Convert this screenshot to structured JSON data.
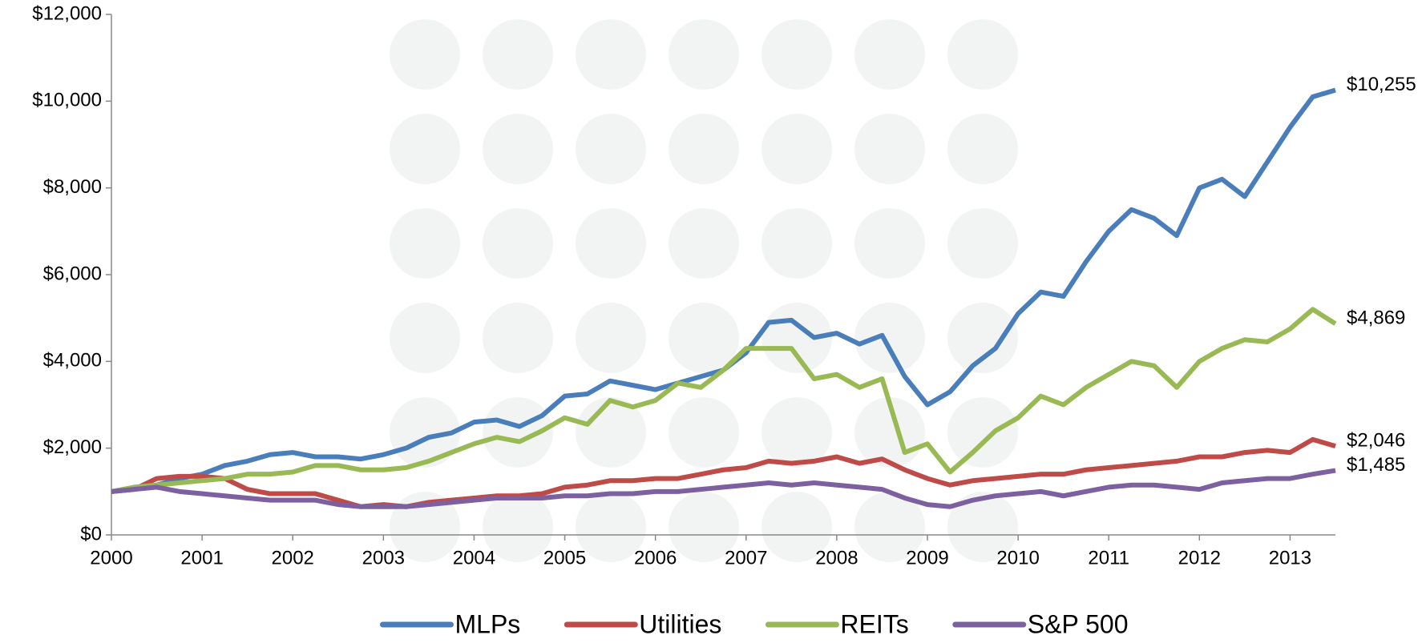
{
  "chart_data": {
    "type": "line",
    "x": [
      2000,
      2000.25,
      2000.5,
      2000.75,
      2001,
      2001.25,
      2001.5,
      2001.75,
      2002,
      2002.25,
      2002.5,
      2002.75,
      2003,
      2003.25,
      2003.5,
      2003.75,
      2004,
      2004.25,
      2004.5,
      2004.75,
      2005,
      2005.25,
      2005.5,
      2005.75,
      2006,
      2006.25,
      2006.5,
      2006.75,
      2007,
      2007.25,
      2007.5,
      2007.75,
      2008,
      2008.25,
      2008.5,
      2008.75,
      2009,
      2009.25,
      2009.5,
      2009.75,
      2010,
      2010.25,
      2010.5,
      2010.75,
      2011,
      2011.25,
      2011.5,
      2011.75,
      2012,
      2012.25,
      2012.5,
      2012.75,
      2013,
      2013.25,
      2013.5
    ],
    "series": [
      {
        "name": "MLPs",
        "color": "#4a7ebb",
        "end_label": "$10,255",
        "values": [
          1000,
          1050,
          1150,
          1300,
          1400,
          1600,
          1700,
          1850,
          1900,
          1800,
          1800,
          1750,
          1850,
          2000,
          2250,
          2350,
          2600,
          2650,
          2500,
          2750,
          3200,
          3250,
          3550,
          3450,
          3350,
          3500,
          3650,
          3800,
          4200,
          4900,
          4950,
          4550,
          4650,
          4400,
          4600,
          3650,
          3000,
          3300,
          3900,
          4300,
          5100,
          5600,
          5500,
          6300,
          7000,
          7500,
          7300,
          6900,
          8000,
          8200,
          7800,
          8600,
          9400,
          10100,
          10255
        ]
      },
      {
        "name": "Utilities",
        "color": "#be4b48",
        "end_label": "$2,046",
        "values": [
          1000,
          1050,
          1300,
          1350,
          1350,
          1300,
          1050,
          950,
          950,
          950,
          800,
          650,
          700,
          650,
          750,
          800,
          850,
          900,
          900,
          950,
          1100,
          1150,
          1250,
          1250,
          1300,
          1300,
          1400,
          1500,
          1550,
          1700,
          1650,
          1700,
          1800,
          1650,
          1750,
          1500,
          1300,
          1150,
          1250,
          1300,
          1350,
          1400,
          1400,
          1500,
          1550,
          1600,
          1650,
          1700,
          1800,
          1800,
          1900,
          1950,
          1900,
          2200,
          2046
        ]
      },
      {
        "name": "REITs",
        "color": "#98b954",
        "end_label": "$4,869",
        "values": [
          1000,
          1100,
          1150,
          1200,
          1250,
          1300,
          1400,
          1400,
          1450,
          1600,
          1600,
          1500,
          1500,
          1550,
          1700,
          1900,
          2100,
          2250,
          2150,
          2400,
          2700,
          2550,
          3100,
          2950,
          3100,
          3500,
          3400,
          3800,
          4300,
          4300,
          4300,
          3600,
          3700,
          3400,
          3600,
          1900,
          2100,
          1450,
          1900,
          2400,
          2700,
          3200,
          3000,
          3400,
          3700,
          4000,
          3900,
          3400,
          4000,
          4300,
          4500,
          4450,
          4750,
          5200,
          4869
        ]
      },
      {
        "name": "S&P 500",
        "color": "#7d60a0",
        "end_label": "$1,485",
        "values": [
          1000,
          1050,
          1100,
          1000,
          950,
          900,
          850,
          800,
          800,
          800,
          700,
          650,
          650,
          650,
          700,
          750,
          800,
          850,
          850,
          850,
          900,
          900,
          950,
          950,
          1000,
          1000,
          1050,
          1100,
          1150,
          1200,
          1150,
          1200,
          1150,
          1100,
          1050,
          850,
          700,
          650,
          800,
          900,
          950,
          1000,
          900,
          1000,
          1100,
          1150,
          1150,
          1100,
          1050,
          1200,
          1250,
          1300,
          1300,
          1400,
          1485
        ]
      }
    ],
    "xlim": [
      2000,
      2013.5
    ],
    "xticks": [
      2000,
      2001,
      2002,
      2003,
      2004,
      2005,
      2006,
      2007,
      2008,
      2009,
      2010,
      2011,
      2012,
      2013
    ],
    "ylim": [
      0,
      12000
    ],
    "yticks": [
      {
        "value": 0,
        "label": "$0"
      },
      {
        "value": 2000,
        "label": "$2,000"
      },
      {
        "value": 4000,
        "label": "$4,000"
      },
      {
        "value": 6000,
        "label": "$6,000"
      },
      {
        "value": 8000,
        "label": "$8,000"
      },
      {
        "value": 10000,
        "label": "$10,000"
      },
      {
        "value": 12000,
        "label": "$12,000"
      }
    ],
    "legend": "bottom"
  }
}
